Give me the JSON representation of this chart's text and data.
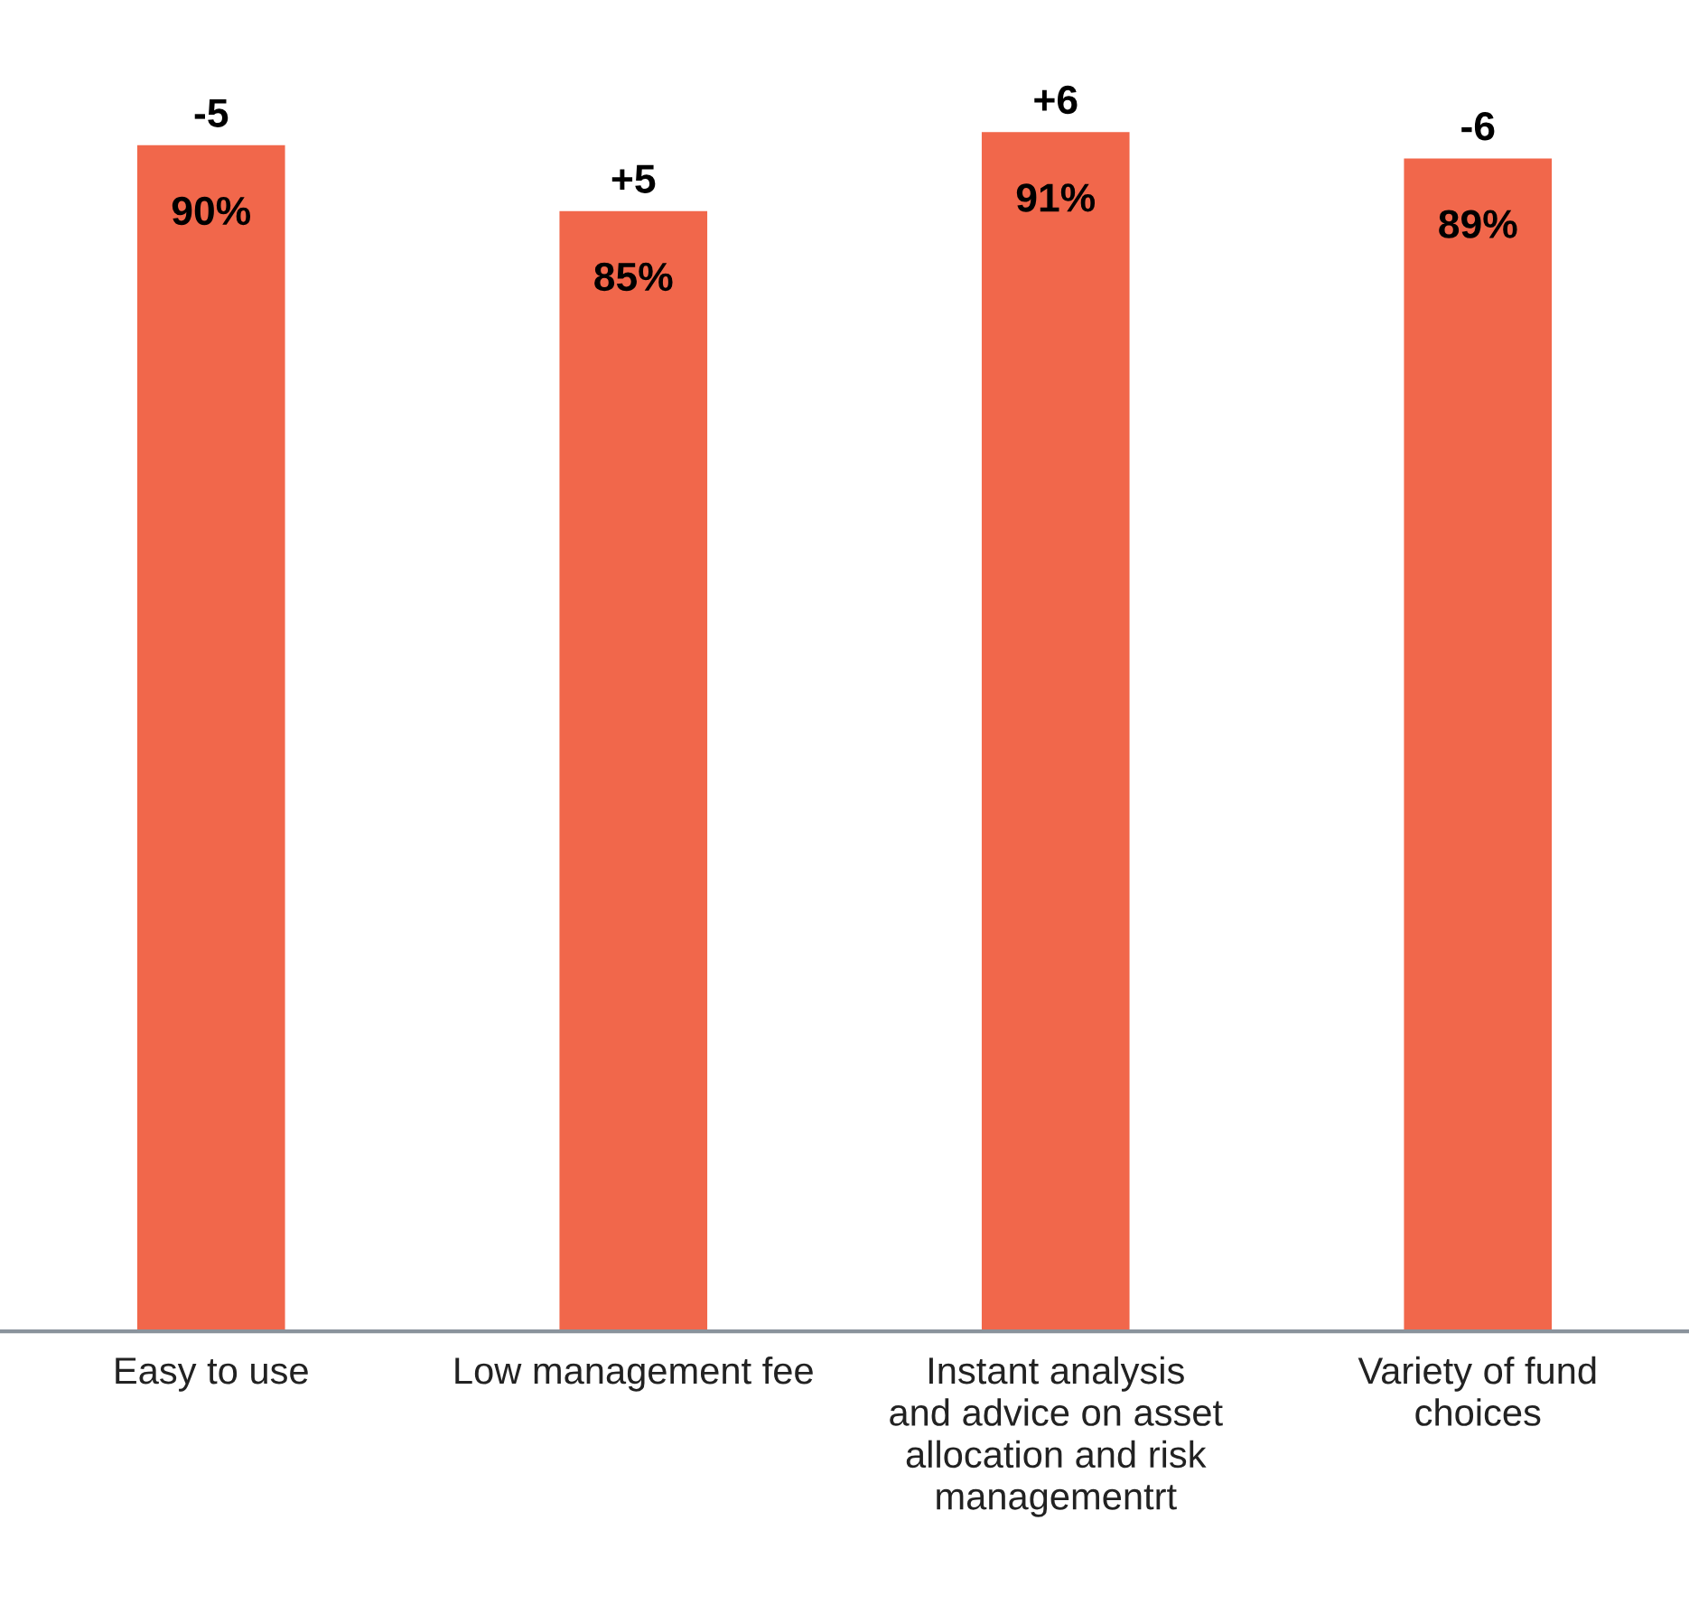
{
  "chart_data": {
    "type": "bar",
    "categories": [
      "Easy to use",
      "Low management fee",
      "Instant analysis and advice on asset allocation and risk managementrt",
      "Variety of fund choices"
    ],
    "values": [
      90,
      85,
      91,
      89
    ],
    "value_labels": [
      "90%",
      "85%",
      "91%",
      "89%"
    ],
    "color": "#f1674b",
    "annotations": [
      {
        "text": "-5",
        "x": "Easy to use",
        "y": 90
      },
      {
        "text": "+5",
        "x": "Low management fee",
        "y": 85
      },
      {
        "text": "+6",
        "x": "Instant analysis and advice on asset allocation and risk managementrt",
        "y": 91
      },
      {
        "text": "-6",
        "x": "Variety of fund choices",
        "y": 89
      }
    ],
    "tick_labels": "x",
    "grid": false,
    "legend": false
  }
}
